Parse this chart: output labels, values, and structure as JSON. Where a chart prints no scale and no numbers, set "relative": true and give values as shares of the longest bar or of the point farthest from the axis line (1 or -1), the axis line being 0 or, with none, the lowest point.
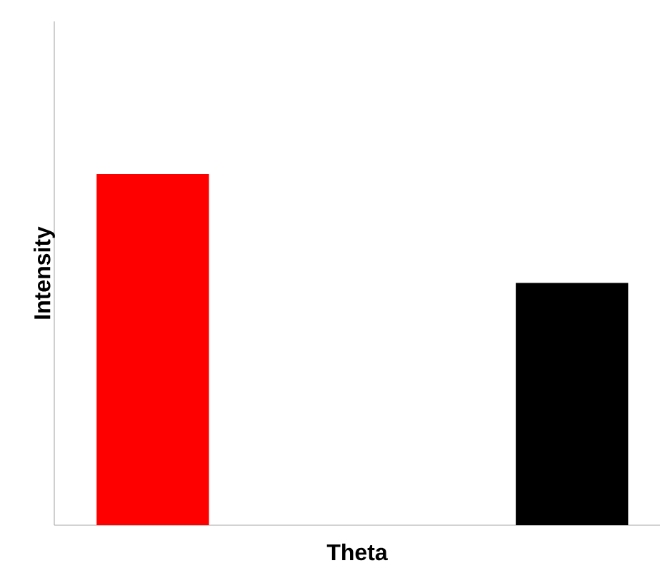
{
  "chart_data": {
    "type": "bar",
    "relative": true,
    "xlabel": "Theta",
    "ylabel": "Intensity",
    "categories": [
      null,
      null
    ],
    "values": [
      1,
      0.69
    ],
    "colors": [
      "#ff0000",
      "#000000"
    ]
  }
}
